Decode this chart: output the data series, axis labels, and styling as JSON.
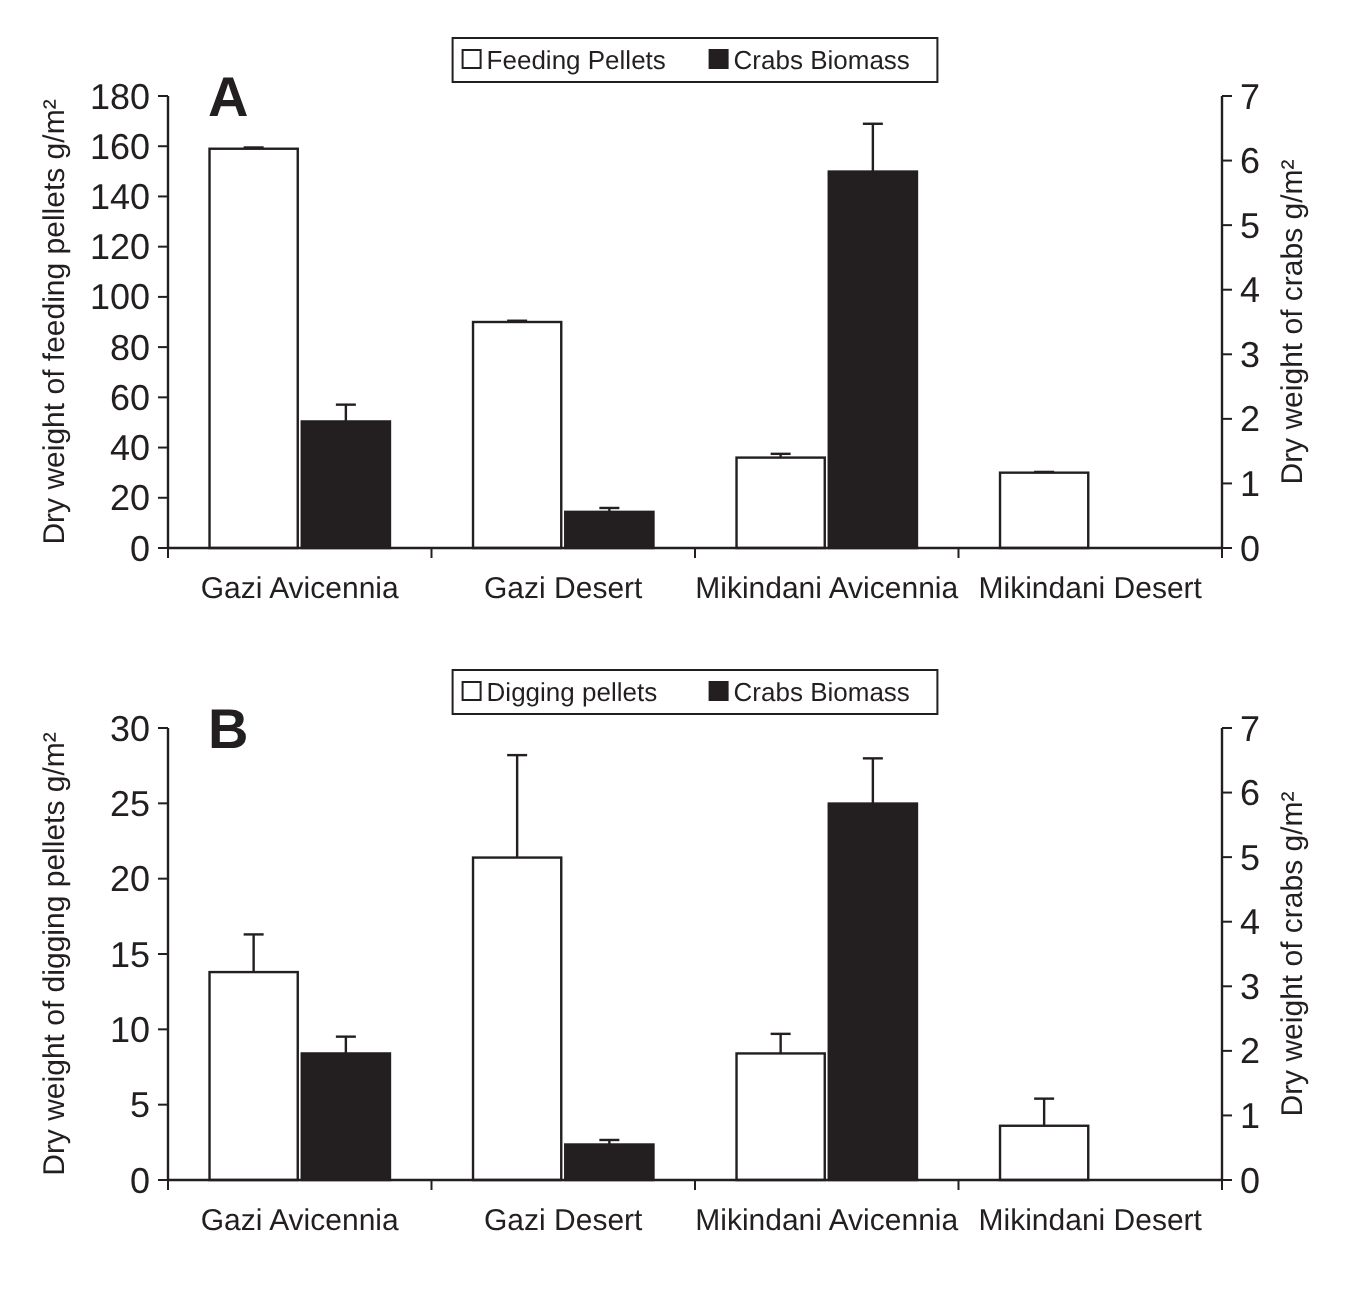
{
  "chart_data": [
    {
      "type": "bar",
      "title": "A",
      "categories": [
        "Gazi Avicennia",
        "Gazi Desert",
        "Mikindani Avicennia",
        "Mikindani Desert"
      ],
      "ylabel": "Dry weight of feeding pellets  g/m²",
      "y2label": "Dry weight of crabs g/m²",
      "ylim": [
        0,
        180
      ],
      "yticks": [
        0,
        20,
        40,
        60,
        80,
        100,
        120,
        140,
        160,
        180
      ],
      "y2lim": [
        0,
        7
      ],
      "y2ticks": [
        0,
        1,
        2,
        3,
        4,
        5,
        6,
        7
      ],
      "legend": "top",
      "grid": false,
      "series": [
        {
          "name": "Feeding Pellets",
          "color": "#ffffff",
          "values": [
            159,
            90,
            36,
            30
          ],
          "errors": [
            0.5,
            0.5,
            1.5,
            0.3
          ]
        },
        {
          "name": "Crabs Biomass",
          "color": "#231f20",
          "axis": "y2",
          "values": [
            1.96,
            0.56,
            5.83,
            0
          ],
          "errors": [
            0.26,
            0.06,
            0.74,
            null
          ]
        }
      ]
    },
    {
      "type": "bar",
      "title": "B",
      "categories": [
        "Gazi Avicennia",
        "Gazi Desert",
        "Mikindani Avicennia",
        "Mikindani Desert"
      ],
      "ylabel": "Dry weight of digging pellets g/m²",
      "y2label": "Dry weight of crabs g/m²",
      "ylim": [
        0,
        30
      ],
      "yticks": [
        0,
        5,
        10,
        15,
        20,
        25,
        30
      ],
      "y2lim": [
        0,
        7
      ],
      "y2ticks": [
        0,
        1,
        2,
        3,
        4,
        5,
        6,
        7
      ],
      "legend": "top",
      "grid": false,
      "series": [
        {
          "name": "Digging pellets",
          "color": "#ffffff",
          "values": [
            13.8,
            21.4,
            8.4,
            3.6
          ],
          "errors": [
            2.5,
            6.8,
            1.3,
            1.8
          ]
        },
        {
          "name": "Crabs Biomass",
          "color": "#231f20",
          "axis": "y2",
          "values": [
            1.96,
            0.55,
            5.83,
            0
          ],
          "errors": [
            0.26,
            0.07,
            0.7,
            null
          ]
        }
      ]
    }
  ]
}
